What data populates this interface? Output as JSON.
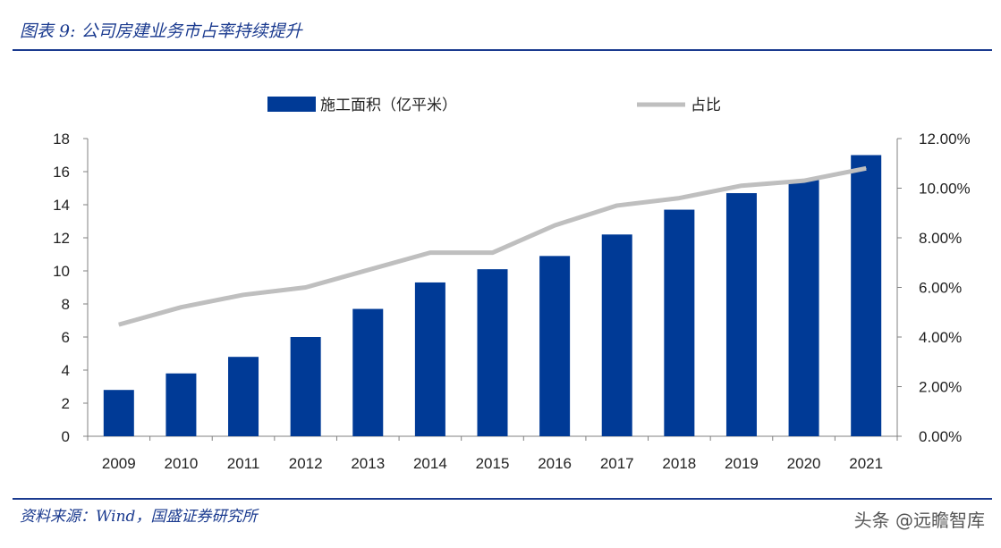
{
  "header": {
    "title": "图表 9:  公司房建业务市占率持续提升"
  },
  "footer": {
    "source": "资料来源：Wind，国盛证券研究所",
    "watermark": "头条 @远瞻智库"
  },
  "chart_data": {
    "type": "bar",
    "title": "",
    "xlabel": "",
    "ylabel": "",
    "categories": [
      "2009",
      "2010",
      "2011",
      "2012",
      "2013",
      "2014",
      "2015",
      "2016",
      "2017",
      "2018",
      "2019",
      "2020",
      "2021"
    ],
    "series": [
      {
        "name": "施工面积（亿平米）",
        "type": "bar",
        "axis": "left",
        "color": "#003a96",
        "values": [
          2.8,
          3.8,
          4.8,
          6.0,
          7.7,
          9.3,
          10.1,
          10.9,
          12.2,
          13.7,
          14.7,
          15.5,
          17.0
        ]
      },
      {
        "name": "占比",
        "type": "line",
        "axis": "right",
        "color": "#bfbfbf",
        "values": [
          0.045,
          0.052,
          0.057,
          0.06,
          0.067,
          0.074,
          0.074,
          0.085,
          0.093,
          0.096,
          0.101,
          0.103,
          0.108
        ]
      }
    ],
    "ylim_left": [
      0,
      18
    ],
    "yticks_left": [
      "0",
      "2",
      "4",
      "6",
      "8",
      "10",
      "12",
      "14",
      "16",
      "18"
    ],
    "ylim_right": [
      0,
      0.12
    ],
    "yticks_right": [
      "0.00%",
      "2.00%",
      "4.00%",
      "6.00%",
      "8.00%",
      "10.00%",
      "12.00%"
    ],
    "legend_position": "top",
    "grid": false
  }
}
